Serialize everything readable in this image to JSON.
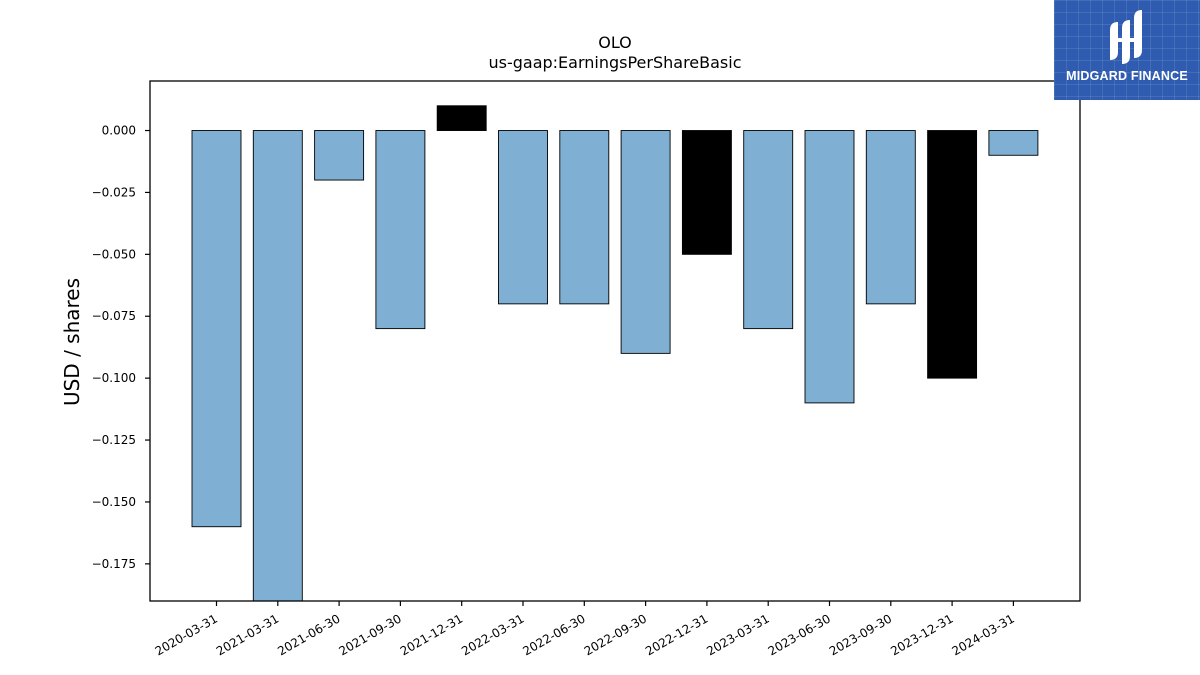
{
  "chart_data": {
    "type": "bar",
    "title": "OLO",
    "subtitle": "us-gaap:EarningsPerShareBasic",
    "xlabel": "",
    "ylabel": "USD / shares",
    "categories": [
      "2020-03-31",
      "2021-03-31",
      "2021-06-30",
      "2021-09-30",
      "2021-12-31",
      "2022-03-31",
      "2022-06-30",
      "2022-09-30",
      "2022-12-31",
      "2023-03-31",
      "2023-06-30",
      "2023-09-30",
      "2023-12-31",
      "2024-03-31"
    ],
    "values": [
      -0.16,
      -0.19,
      -0.02,
      -0.08,
      0.01,
      -0.07,
      -0.07,
      -0.09,
      -0.05,
      -0.08,
      -0.11,
      -0.07,
      -0.1,
      -0.01
    ],
    "bar_colors": [
      "#7fafd3",
      "#7fafd3",
      "#7fafd3",
      "#7fafd3",
      "#000000",
      "#7fafd3",
      "#7fafd3",
      "#7fafd3",
      "#000000",
      "#7fafd3",
      "#7fafd3",
      "#7fafd3",
      "#000000",
      "#7fafd3"
    ],
    "ylim": [
      -0.19,
      0.02
    ],
    "yticks": [
      0.0,
      -0.025,
      -0.05,
      -0.075,
      -0.1,
      -0.125,
      -0.15,
      -0.175
    ],
    "ytick_labels": [
      "0.000",
      "−0.025",
      "−0.050",
      "−0.075",
      "−0.100",
      "−0.125",
      "−0.150",
      "−0.175"
    ],
    "grid": false,
    "legend": "none"
  },
  "logo": {
    "text": "MIDGARD FINANCE",
    "icon": "midgard-logo-icon",
    "background": "#2f5cb0"
  }
}
